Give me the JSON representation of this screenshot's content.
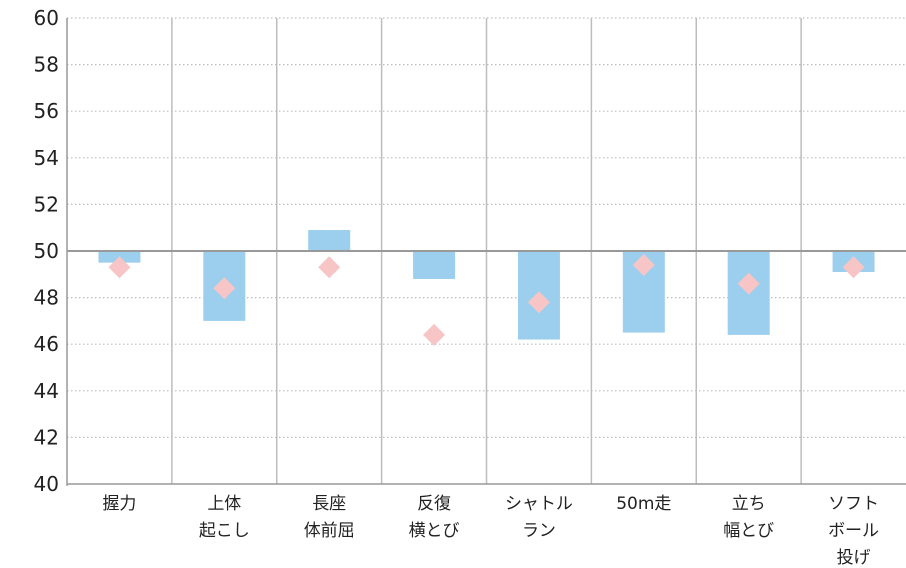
{
  "chart_data": {
    "type": "bar",
    "categories": [
      [
        "握力"
      ],
      [
        "上体",
        "起こし"
      ],
      [
        "長座",
        "体前屈"
      ],
      [
        "反復",
        "横とび"
      ],
      [
        "シャトル",
        "ラン"
      ],
      [
        "50m走"
      ],
      [
        "立ち",
        "幅とび"
      ],
      [
        "ソフト",
        "ボール",
        "投げ"
      ]
    ],
    "baseline": 50,
    "ylim": [
      40,
      60
    ],
    "yticks": [
      "60",
      "58",
      "56",
      "54",
      "52",
      "50",
      "48",
      "46",
      "44",
      "42",
      "40"
    ],
    "grid": true,
    "series": [
      {
        "type": "bar",
        "values": [
          49.5,
          47.0,
          50.9,
          48.8,
          46.2,
          46.5,
          46.4,
          49.1
        ]
      },
      {
        "type": "scatter",
        "marker": "diamond",
        "values": [
          49.3,
          48.4,
          49.3,
          46.4,
          47.8,
          49.4,
          48.6,
          49.3
        ]
      }
    ],
    "colors": {
      "bar": "#9ccfee",
      "marker": "#f7c5c5",
      "grid": "#bdbdbd",
      "axis": "#999999",
      "baseline": "#999999"
    }
  }
}
